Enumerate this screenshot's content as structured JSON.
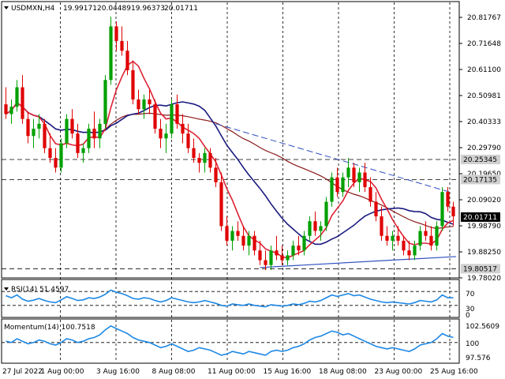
{
  "header": {
    "symbol": "USDMXN,H4",
    "open": "19.99171",
    "high": "20.04489",
    "low": "19.96373",
    "close": "20.01711"
  },
  "rsi_panel": {
    "label": "RSI(14) 51.4597",
    "levels": [
      "70",
      "30",
      "0"
    ]
  },
  "momentum_panel": {
    "label": "Momentum(14) 100.7518",
    "levels": [
      "102.5609",
      "100",
      "97.576"
    ]
  },
  "colors": {
    "price_line": "#00a0c8",
    "bull_candle": "#00a000",
    "bear_candle": "#e00000",
    "ma_fast": "#dd2233",
    "ma_mid": "#1a1a80",
    "ma_slow": "#8b1a1a",
    "trend": "#3050c0",
    "indicator": "#1e88e5"
  },
  "chart_data": {
    "type": "line",
    "y_ticks": [
      "20.81767",
      "20.71648",
      "20.61100",
      "20.50981",
      "20.40333",
      "20.29790",
      "20.19650",
      "20.09020",
      "19.98790",
      "19.88250",
      "19.78020"
    ],
    "price_tags": [
      {
        "text": "20.25345",
        "value": 20.25345,
        "style": "gray"
      },
      {
        "text": "20.17135",
        "value": 20.17135,
        "style": "gray"
      },
      {
        "text": "20.01711",
        "value": 20.01711,
        "style": "black"
      },
      {
        "text": "19.80517",
        "value": 19.80517,
        "style": "gray"
      }
    ],
    "x_ticks": [
      "27 Jul 2022",
      "1 Aug 00:00",
      "3 Aug 16:00",
      "8 Aug 08:00",
      "11 Aug 00:00",
      "15 Aug 16:00",
      "18 Aug 08:00",
      "23 Aug 00:00",
      "25 Aug 16:00"
    ],
    "ylim": [
      19.7802,
      20.85
    ],
    "horizontal_levels": [
      20.25345,
      20.17135,
      19.80517
    ],
    "candles": [
      [
        20.48,
        20.55,
        20.42,
        20.44
      ],
      [
        20.44,
        20.5,
        20.4,
        20.47
      ],
      [
        20.47,
        20.58,
        20.45,
        20.55
      ],
      [
        20.55,
        20.6,
        20.4,
        20.42
      ],
      [
        20.42,
        20.45,
        20.32,
        20.35
      ],
      [
        20.35,
        20.42,
        20.3,
        20.38
      ],
      [
        20.38,
        20.44,
        20.34,
        20.4
      ],
      [
        20.4,
        20.42,
        20.28,
        20.3
      ],
      [
        20.3,
        20.36,
        20.24,
        20.26
      ],
      [
        20.26,
        20.3,
        20.2,
        20.22
      ],
      [
        20.22,
        20.34,
        20.2,
        20.32
      ],
      [
        20.32,
        20.44,
        20.3,
        20.42
      ],
      [
        20.42,
        20.46,
        20.34,
        20.36
      ],
      [
        20.36,
        20.4,
        20.26,
        20.28
      ],
      [
        20.28,
        20.32,
        20.24,
        20.3
      ],
      [
        20.3,
        20.4,
        20.28,
        20.38
      ],
      [
        20.38,
        20.45,
        20.3,
        20.34
      ],
      [
        20.34,
        20.42,
        20.3,
        20.4
      ],
      [
        20.4,
        20.6,
        20.38,
        20.58
      ],
      [
        20.58,
        20.84,
        20.56,
        20.8
      ],
      [
        20.8,
        20.82,
        20.7,
        20.74
      ],
      [
        20.74,
        20.8,
        20.68,
        20.7
      ],
      [
        20.7,
        20.74,
        20.6,
        20.62
      ],
      [
        20.62,
        20.66,
        20.48,
        20.5
      ],
      [
        20.5,
        20.54,
        20.44,
        20.46
      ],
      [
        20.46,
        20.52,
        20.42,
        20.5
      ],
      [
        20.5,
        20.54,
        20.44,
        20.48
      ],
      [
        20.48,
        20.5,
        20.36,
        20.38
      ],
      [
        20.38,
        20.42,
        20.3,
        20.34
      ],
      [
        20.34,
        20.4,
        20.28,
        20.36
      ],
      [
        20.36,
        20.5,
        20.34,
        20.48
      ],
      [
        20.48,
        20.52,
        20.38,
        20.4
      ],
      [
        20.4,
        20.44,
        20.32,
        20.36
      ],
      [
        20.36,
        20.4,
        20.28,
        20.3
      ],
      [
        20.3,
        20.34,
        20.24,
        20.26
      ],
      [
        20.26,
        20.28,
        20.2,
        20.24
      ],
      [
        20.24,
        20.3,
        20.2,
        20.28
      ],
      [
        20.28,
        20.3,
        20.2,
        20.22
      ],
      [
        20.22,
        20.26,
        20.14,
        20.16
      ],
      [
        20.16,
        20.2,
        19.96,
        19.98
      ],
      [
        19.98,
        20.02,
        19.9,
        19.92
      ],
      [
        19.92,
        19.98,
        19.88,
        19.96
      ],
      [
        19.96,
        20.0,
        19.92,
        19.94
      ],
      [
        19.94,
        19.98,
        19.88,
        19.9
      ],
      [
        19.9,
        19.96,
        19.86,
        19.94
      ],
      [
        19.94,
        19.96,
        19.86,
        19.88
      ],
      [
        19.88,
        19.92,
        19.82,
        19.84
      ],
      [
        19.84,
        19.88,
        19.8,
        19.82
      ],
      [
        19.82,
        19.9,
        19.8,
        19.88
      ],
      [
        19.88,
        19.94,
        19.84,
        19.86
      ],
      [
        19.86,
        19.9,
        19.82,
        19.84
      ],
      [
        19.84,
        19.88,
        19.82,
        19.86
      ],
      [
        19.86,
        19.92,
        19.84,
        19.9
      ],
      [
        19.9,
        19.94,
        19.86,
        19.88
      ],
      [
        19.88,
        19.96,
        19.86,
        19.94
      ],
      [
        19.94,
        20.02,
        19.92,
        20.0
      ],
      [
        20.0,
        20.04,
        19.94,
        19.96
      ],
      [
        19.96,
        20.0,
        19.92,
        19.98
      ],
      [
        19.98,
        20.1,
        19.96,
        20.08
      ],
      [
        20.08,
        20.2,
        20.06,
        20.18
      ],
      [
        20.18,
        20.22,
        20.1,
        20.12
      ],
      [
        20.12,
        20.2,
        20.1,
        20.18
      ],
      [
        20.18,
        20.26,
        20.14,
        20.22
      ],
      [
        20.22,
        20.24,
        20.14,
        20.16
      ],
      [
        20.16,
        20.22,
        20.12,
        20.2
      ],
      [
        20.2,
        20.24,
        20.12,
        20.14
      ],
      [
        20.14,
        20.18,
        20.06,
        20.08
      ],
      [
        20.08,
        20.12,
        20.0,
        20.02
      ],
      [
        20.02,
        20.06,
        19.92,
        19.94
      ],
      [
        19.94,
        19.98,
        19.9,
        19.92
      ],
      [
        19.92,
        19.96,
        19.88,
        19.94
      ],
      [
        19.94,
        19.98,
        19.9,
        19.92
      ],
      [
        19.92,
        19.94,
        19.86,
        19.88
      ],
      [
        19.88,
        19.92,
        19.84,
        19.86
      ],
      [
        19.86,
        19.92,
        19.84,
        19.9
      ],
      [
        19.9,
        19.98,
        19.88,
        19.96
      ],
      [
        19.96,
        20.0,
        19.92,
        19.94
      ],
      [
        19.94,
        19.98,
        19.88,
        19.9
      ],
      [
        19.9,
        20.0,
        19.88,
        19.98
      ],
      [
        19.98,
        20.14,
        19.96,
        20.12
      ],
      [
        20.12,
        20.14,
        20.04,
        20.06
      ],
      [
        20.06,
        20.08,
        19.98,
        20.02
      ]
    ],
    "rsi": [
      58,
      52,
      60,
      48,
      42,
      45,
      50,
      44,
      40,
      38,
      46,
      55,
      50,
      44,
      46,
      52,
      50,
      54,
      62,
      74,
      68,
      64,
      58,
      50,
      48,
      52,
      50,
      44,
      40,
      44,
      52,
      48,
      44,
      40,
      38,
      40,
      44,
      40,
      36,
      30,
      28,
      34,
      32,
      30,
      34,
      30,
      28,
      26,
      32,
      30,
      28,
      30,
      34,
      32,
      36,
      42,
      40,
      44,
      52,
      60,
      56,
      60,
      64,
      58,
      60,
      54,
      48,
      44,
      40,
      38,
      40,
      38,
      36,
      34,
      38,
      44,
      42,
      40,
      46,
      60,
      52,
      52
    ],
    "momentum": [
      100.2,
      100.0,
      100.6,
      100.2,
      99.8,
      100.0,
      100.4,
      100.2,
      99.8,
      99.6,
      100.0,
      100.6,
      100.4,
      100.0,
      100.2,
      100.6,
      100.8,
      101.2,
      102.0,
      102.6,
      102.2,
      101.8,
      101.4,
      100.8,
      100.4,
      100.2,
      100.0,
      99.6,
      99.2,
      99.4,
      99.8,
      99.4,
      99.0,
      98.6,
      98.8,
      99.2,
      99.0,
      98.8,
      98.4,
      98.0,
      98.2,
      98.6,
      98.4,
      98.2,
      98.6,
      98.4,
      98.2,
      98.0,
      98.6,
      98.8,
      98.6,
      98.8,
      99.2,
      99.4,
      99.8,
      100.4,
      100.8,
      101.0,
      101.4,
      101.8,
      101.6,
      101.2,
      101.4,
      101.0,
      100.6,
      100.2,
      99.8,
      99.4,
      99.2,
      99.0,
      99.2,
      99.0,
      98.8,
      98.6,
      99.0,
      99.6,
      99.8,
      100.0,
      100.6,
      101.4,
      101.0,
      100.8
    ]
  }
}
